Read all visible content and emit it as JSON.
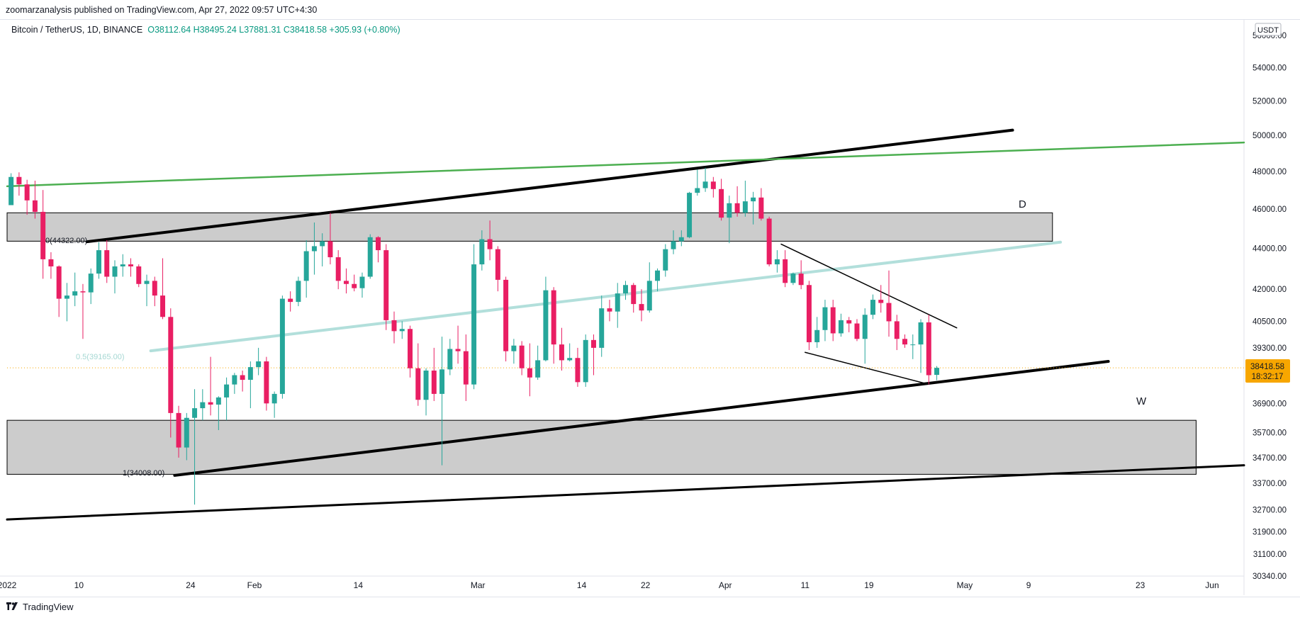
{
  "header": {
    "publish_line": "zoomarzanalysis published on TradingView.com, Apr 27, 2022 09:57 UTC+4:30"
  },
  "legend": {
    "symbol": "Bitcoin / TetherUS, 1D, BINANCE",
    "open": "O38112.64",
    "high": "H38495.24",
    "low": "L37881.31",
    "close": "C38418.58",
    "change": "+305.93 (+0.80%)"
  },
  "footer": {
    "brand": "TradingView"
  },
  "price_badge": {
    "price": "38418.58",
    "countdown": "18:32:17"
  },
  "currency": "USDT",
  "colors": {
    "up": "#26a69a",
    "down": "#e91e63",
    "zone_fill": "#cccccc",
    "green_line": "#4caf50",
    "teal_line": "#b2dfdb",
    "price_line": "#f7a600",
    "badge": "#f7a600"
  },
  "annotations": {
    "fib_0": "0(44322.00)",
    "fib_05": "0.5(39165.00)",
    "fib_1": "1(34008.00)",
    "zone_label_D": "D",
    "zone_label_W": "W"
  },
  "chart_data": {
    "type": "candlestick",
    "title": "",
    "xlabel": "",
    "ylabel": "",
    "y_scale": "log",
    "ylim": [
      30340,
      57000
    ],
    "xlim": [
      "2022-01-01",
      "2022-06-05"
    ],
    "y_ticks": [
      "56000.00",
      "54000.00",
      "52000.00",
      "50000.00",
      "48000.00",
      "46000.00",
      "44000.00",
      "42000.00",
      "40500.00",
      "39300.00",
      "36900.00",
      "35700.00",
      "34700.00",
      "33700.00",
      "32700.00",
      "31900.00",
      "31100.00",
      "30340.00"
    ],
    "x_ticks": [
      {
        "date": "2022-01-01",
        "label": "2022"
      },
      {
        "date": "2022-01-10",
        "label": "10"
      },
      {
        "date": "2022-01-24",
        "label": "24"
      },
      {
        "date": "2022-02-01",
        "label": "Feb"
      },
      {
        "date": "2022-02-14",
        "label": "14"
      },
      {
        "date": "2022-03-01",
        "label": "Mar"
      },
      {
        "date": "2022-03-14",
        "label": "14"
      },
      {
        "date": "2022-03-22",
        "label": "22"
      },
      {
        "date": "2022-04-01",
        "label": "Apr"
      },
      {
        "date": "2022-04-11",
        "label": "11"
      },
      {
        "date": "2022-04-19",
        "label": "19"
      },
      {
        "date": "2022-05-01",
        "label": "May"
      },
      {
        "date": "2022-05-09",
        "label": "9"
      },
      {
        "date": "2022-05-23",
        "label": "23"
      },
      {
        "date": "2022-06-01",
        "label": "Jun"
      }
    ],
    "candles": [
      {
        "d": "2022-01-01",
        "o": 46200,
        "h": 47900,
        "l": 46200,
        "c": 47700
      },
      {
        "d": "2022-01-02",
        "o": 47700,
        "h": 47950,
        "l": 46700,
        "c": 47300
      },
      {
        "d": "2022-01-03",
        "o": 47300,
        "h": 47550,
        "l": 45700,
        "c": 46450
      },
      {
        "d": "2022-01-04",
        "o": 46450,
        "h": 47500,
        "l": 45500,
        "c": 45850
      },
      {
        "d": "2022-01-05",
        "o": 45850,
        "h": 47000,
        "l": 42500,
        "c": 43450
      },
      {
        "d": "2022-01-06",
        "o": 43450,
        "h": 43800,
        "l": 42500,
        "c": 43100
      },
      {
        "d": "2022-01-07",
        "o": 43100,
        "h": 43150,
        "l": 40700,
        "c": 41550
      },
      {
        "d": "2022-01-08",
        "o": 41550,
        "h": 42300,
        "l": 40500,
        "c": 41700
      },
      {
        "d": "2022-01-09",
        "o": 41700,
        "h": 42800,
        "l": 41200,
        "c": 41900
      },
      {
        "d": "2022-01-10",
        "o": 41900,
        "h": 42250,
        "l": 39700,
        "c": 41850
      },
      {
        "d": "2022-01-11",
        "o": 41850,
        "h": 43000,
        "l": 41300,
        "c": 42750
      },
      {
        "d": "2022-01-12",
        "o": 42750,
        "h": 44300,
        "l": 42500,
        "c": 43900
      },
      {
        "d": "2022-01-13",
        "o": 43900,
        "h": 44400,
        "l": 42300,
        "c": 42600
      },
      {
        "d": "2022-01-14",
        "o": 42600,
        "h": 43400,
        "l": 41800,
        "c": 43100
      },
      {
        "d": "2022-01-15",
        "o": 43100,
        "h": 43700,
        "l": 42600,
        "c": 43200
      },
      {
        "d": "2022-01-16",
        "o": 43200,
        "h": 43500,
        "l": 42600,
        "c": 43100
      },
      {
        "d": "2022-01-17",
        "o": 43100,
        "h": 43200,
        "l": 42100,
        "c": 42250
      },
      {
        "d": "2022-01-18",
        "o": 42250,
        "h": 42700,
        "l": 41200,
        "c": 42400
      },
      {
        "d": "2022-01-19",
        "o": 42400,
        "h": 42600,
        "l": 41200,
        "c": 41700
      },
      {
        "d": "2022-01-20",
        "o": 41700,
        "h": 43500,
        "l": 40600,
        "c": 40700
      },
      {
        "d": "2022-01-21",
        "o": 40700,
        "h": 41100,
        "l": 35500,
        "c": 36500
      },
      {
        "d": "2022-01-22",
        "o": 36500,
        "h": 36800,
        "l": 34700,
        "c": 35100
      },
      {
        "d": "2022-01-23",
        "o": 35100,
        "h": 36500,
        "l": 34600,
        "c": 36300
      },
      {
        "d": "2022-01-24",
        "o": 36300,
        "h": 37500,
        "l": 32900,
        "c": 36700
      },
      {
        "d": "2022-01-25",
        "o": 36700,
        "h": 37500,
        "l": 36200,
        "c": 36950
      },
      {
        "d": "2022-01-26",
        "o": 36950,
        "h": 38900,
        "l": 36400,
        "c": 36850
      },
      {
        "d": "2022-01-27",
        "o": 36850,
        "h": 37200,
        "l": 35800,
        "c": 37150
      },
      {
        "d": "2022-01-28",
        "o": 37150,
        "h": 38000,
        "l": 36200,
        "c": 37700
      },
      {
        "d": "2022-01-29",
        "o": 37700,
        "h": 38200,
        "l": 37300,
        "c": 38100
      },
      {
        "d": "2022-01-30",
        "o": 38100,
        "h": 38300,
        "l": 37400,
        "c": 37900
      },
      {
        "d": "2022-01-31",
        "o": 37900,
        "h": 38700,
        "l": 36700,
        "c": 38450
      },
      {
        "d": "2022-02-01",
        "o": 38450,
        "h": 39300,
        "l": 38100,
        "c": 38700
      },
      {
        "d": "2022-02-02",
        "o": 38700,
        "h": 38900,
        "l": 36600,
        "c": 36900
      },
      {
        "d": "2022-02-03",
        "o": 36900,
        "h": 37400,
        "l": 36300,
        "c": 37300
      },
      {
        "d": "2022-02-04",
        "o": 37300,
        "h": 41700,
        "l": 37100,
        "c": 41550
      },
      {
        "d": "2022-02-05",
        "o": 41550,
        "h": 41900,
        "l": 40950,
        "c": 41400
      },
      {
        "d": "2022-02-06",
        "o": 41400,
        "h": 42600,
        "l": 41200,
        "c": 42400
      },
      {
        "d": "2022-02-07",
        "o": 42400,
        "h": 44400,
        "l": 41600,
        "c": 43850
      },
      {
        "d": "2022-02-08",
        "o": 43850,
        "h": 45300,
        "l": 42700,
        "c": 44100
      },
      {
        "d": "2022-02-09",
        "o": 44100,
        "h": 44750,
        "l": 43100,
        "c": 44350
      },
      {
        "d": "2022-02-10",
        "o": 44350,
        "h": 45800,
        "l": 43200,
        "c": 43550
      },
      {
        "d": "2022-02-11",
        "o": 43550,
        "h": 43900,
        "l": 42000,
        "c": 42400
      },
      {
        "d": "2022-02-12",
        "o": 42400,
        "h": 43000,
        "l": 41800,
        "c": 42250
      },
      {
        "d": "2022-02-13",
        "o": 42250,
        "h": 42700,
        "l": 41900,
        "c": 42050
      },
      {
        "d": "2022-02-14",
        "o": 42050,
        "h": 42800,
        "l": 41600,
        "c": 42600
      },
      {
        "d": "2022-02-15",
        "o": 42600,
        "h": 44700,
        "l": 42500,
        "c": 44550
      },
      {
        "d": "2022-02-16",
        "o": 44550,
        "h": 44600,
        "l": 43300,
        "c": 43900
      },
      {
        "d": "2022-02-17",
        "o": 43900,
        "h": 44200,
        "l": 40100,
        "c": 40550
      },
      {
        "d": "2022-02-18",
        "o": 40550,
        "h": 40950,
        "l": 39500,
        "c": 40050
      },
      {
        "d": "2022-02-19",
        "o": 40050,
        "h": 40500,
        "l": 39700,
        "c": 40150
      },
      {
        "d": "2022-02-20",
        "o": 40150,
        "h": 40300,
        "l": 38000,
        "c": 38400
      },
      {
        "d": "2022-02-21",
        "o": 38400,
        "h": 39500,
        "l": 36800,
        "c": 37050
      },
      {
        "d": "2022-02-22",
        "o": 37050,
        "h": 38400,
        "l": 36400,
        "c": 38300
      },
      {
        "d": "2022-02-23",
        "o": 38300,
        "h": 39300,
        "l": 37000,
        "c": 37300
      },
      {
        "d": "2022-02-24",
        "o": 37300,
        "h": 39800,
        "l": 34400,
        "c": 38350
      },
      {
        "d": "2022-02-25",
        "o": 38350,
        "h": 39700,
        "l": 38100,
        "c": 39250
      },
      {
        "d": "2022-02-26",
        "o": 39250,
        "h": 40300,
        "l": 38600,
        "c": 39150
      },
      {
        "d": "2022-02-27",
        "o": 39150,
        "h": 39900,
        "l": 37000,
        "c": 37700
      },
      {
        "d": "2022-02-28",
        "o": 37700,
        "h": 44200,
        "l": 37500,
        "c": 43200
      },
      {
        "d": "2022-03-01",
        "o": 43200,
        "h": 44900,
        "l": 42900,
        "c": 44450
      },
      {
        "d": "2022-03-02",
        "o": 44450,
        "h": 45400,
        "l": 43400,
        "c": 43950
      },
      {
        "d": "2022-03-03",
        "o": 43950,
        "h": 44100,
        "l": 41900,
        "c": 42450
      },
      {
        "d": "2022-03-04",
        "o": 42450,
        "h": 42600,
        "l": 38700,
        "c": 39150
      },
      {
        "d": "2022-03-05",
        "o": 39150,
        "h": 39700,
        "l": 38600,
        "c": 39400
      },
      {
        "d": "2022-03-06",
        "o": 39400,
        "h": 39600,
        "l": 38100,
        "c": 38400
      },
      {
        "d": "2022-03-07",
        "o": 38400,
        "h": 39500,
        "l": 37200,
        "c": 38000
      },
      {
        "d": "2022-03-08",
        "o": 38000,
        "h": 39400,
        "l": 37900,
        "c": 38750
      },
      {
        "d": "2022-03-09",
        "o": 38750,
        "h": 42600,
        "l": 38700,
        "c": 41950
      },
      {
        "d": "2022-03-10",
        "o": 41950,
        "h": 42100,
        "l": 38600,
        "c": 39450
      },
      {
        "d": "2022-03-11",
        "o": 39450,
        "h": 40200,
        "l": 38300,
        "c": 38750
      },
      {
        "d": "2022-03-12",
        "o": 38750,
        "h": 39500,
        "l": 38700,
        "c": 38850
      },
      {
        "d": "2022-03-13",
        "o": 38850,
        "h": 39300,
        "l": 37600,
        "c": 37800
      },
      {
        "d": "2022-03-14",
        "o": 37800,
        "h": 39900,
        "l": 37600,
        "c": 39650
      },
      {
        "d": "2022-03-15",
        "o": 39650,
        "h": 39900,
        "l": 38100,
        "c": 39300
      },
      {
        "d": "2022-03-16",
        "o": 39300,
        "h": 41700,
        "l": 38900,
        "c": 41100
      },
      {
        "d": "2022-03-17",
        "o": 41100,
        "h": 41500,
        "l": 40500,
        "c": 40950
      },
      {
        "d": "2022-03-18",
        "o": 40950,
        "h": 42300,
        "l": 40200,
        "c": 41800
      },
      {
        "d": "2022-03-19",
        "o": 41800,
        "h": 42400,
        "l": 41500,
        "c": 42200
      },
      {
        "d": "2022-03-20",
        "o": 42200,
        "h": 42300,
        "l": 40900,
        "c": 41300
      },
      {
        "d": "2022-03-21",
        "o": 41300,
        "h": 42000,
        "l": 40500,
        "c": 41000
      },
      {
        "d": "2022-03-22",
        "o": 41000,
        "h": 43300,
        "l": 40900,
        "c": 42400
      },
      {
        "d": "2022-03-23",
        "o": 42400,
        "h": 43000,
        "l": 41900,
        "c": 42900
      },
      {
        "d": "2022-03-24",
        "o": 42900,
        "h": 44200,
        "l": 42600,
        "c": 43950
      },
      {
        "d": "2022-03-25",
        "o": 43950,
        "h": 44900,
        "l": 43700,
        "c": 44350
      },
      {
        "d": "2022-03-26",
        "o": 44350,
        "h": 44900,
        "l": 44100,
        "c": 44550
      },
      {
        "d": "2022-03-27",
        "o": 44550,
        "h": 46900,
        "l": 44500,
        "c": 46850
      },
      {
        "d": "2022-03-28",
        "o": 46850,
        "h": 48100,
        "l": 46700,
        "c": 47100
      },
      {
        "d": "2022-03-29",
        "o": 47100,
        "h": 48200,
        "l": 46900,
        "c": 47450
      },
      {
        "d": "2022-03-30",
        "o": 47450,
        "h": 47700,
        "l": 46600,
        "c": 47050
      },
      {
        "d": "2022-03-31",
        "o": 47050,
        "h": 47600,
        "l": 45400,
        "c": 45550
      },
      {
        "d": "2022-04-01",
        "o": 45550,
        "h": 46700,
        "l": 44250,
        "c": 46300
      },
      {
        "d": "2022-04-02",
        "o": 46300,
        "h": 47200,
        "l": 45600,
        "c": 45800
      },
      {
        "d": "2022-04-03",
        "o": 45800,
        "h": 47500,
        "l": 45600,
        "c": 46400
      },
      {
        "d": "2022-04-04",
        "o": 46400,
        "h": 46900,
        "l": 45200,
        "c": 46600
      },
      {
        "d": "2022-04-05",
        "o": 46600,
        "h": 47100,
        "l": 45400,
        "c": 45500
      },
      {
        "d": "2022-04-06",
        "o": 45500,
        "h": 45600,
        "l": 43100,
        "c": 43200
      },
      {
        "d": "2022-04-07",
        "o": 43200,
        "h": 43900,
        "l": 42800,
        "c": 43450
      },
      {
        "d": "2022-04-08",
        "o": 43450,
        "h": 43900,
        "l": 42100,
        "c": 42300
      },
      {
        "d": "2022-04-09",
        "o": 42300,
        "h": 42800,
        "l": 42200,
        "c": 42750
      },
      {
        "d": "2022-04-10",
        "o": 42750,
        "h": 43400,
        "l": 42000,
        "c": 42200
      },
      {
        "d": "2022-04-11",
        "o": 42200,
        "h": 42400,
        "l": 39200,
        "c": 39550
      },
      {
        "d": "2022-04-12",
        "o": 39550,
        "h": 40700,
        "l": 39300,
        "c": 40100
      },
      {
        "d": "2022-04-13",
        "o": 40100,
        "h": 41500,
        "l": 39600,
        "c": 41150
      },
      {
        "d": "2022-04-14",
        "o": 41150,
        "h": 41500,
        "l": 39600,
        "c": 39950
      },
      {
        "d": "2022-04-15",
        "o": 39950,
        "h": 40850,
        "l": 39800,
        "c": 40550
      },
      {
        "d": "2022-04-16",
        "o": 40550,
        "h": 40700,
        "l": 40000,
        "c": 40400
      },
      {
        "d": "2022-04-17",
        "o": 40400,
        "h": 40600,
        "l": 39600,
        "c": 39700
      },
      {
        "d": "2022-04-18",
        "o": 39700,
        "h": 41100,
        "l": 38600,
        "c": 40800
      },
      {
        "d": "2022-04-19",
        "o": 40800,
        "h": 41750,
        "l": 40600,
        "c": 41500
      },
      {
        "d": "2022-04-20",
        "o": 41500,
        "h": 42200,
        "l": 40900,
        "c": 41350
      },
      {
        "d": "2022-04-21",
        "o": 41350,
        "h": 42900,
        "l": 39800,
        "c": 40500
      },
      {
        "d": "2022-04-22",
        "o": 40500,
        "h": 40800,
        "l": 39200,
        "c": 39700
      },
      {
        "d": "2022-04-23",
        "o": 39700,
        "h": 39900,
        "l": 39300,
        "c": 39450
      },
      {
        "d": "2022-04-24",
        "o": 39450,
        "h": 39900,
        "l": 38800,
        "c": 39450
      },
      {
        "d": "2022-04-25",
        "o": 39450,
        "h": 40600,
        "l": 38200,
        "c": 40450
      },
      {
        "d": "2022-04-26",
        "o": 40450,
        "h": 40800,
        "l": 37700,
        "c": 38100
      },
      {
        "d": "2022-04-27",
        "o": 38112.64,
        "h": 38495.24,
        "l": 37881.31,
        "c": 38418.58
      }
    ],
    "zones": [
      {
        "label": "D",
        "from": "2022-01-01",
        "to": "2022-05-12",
        "top": 45800,
        "bottom": 44350
      },
      {
        "label": "W",
        "from": "2022-01-01",
        "to": "2022-05-30",
        "top": 36200,
        "bottom": 34050
      }
    ],
    "trendlines": [
      {
        "name": "channel-top",
        "color": "#000000",
        "width": 4,
        "p1": {
          "d": "2022-01-11",
          "v": 44322
        },
        "p2": {
          "d": "2022-05-07",
          "v": 50300
        }
      },
      {
        "name": "channel-bottom",
        "color": "#000000",
        "width": 4,
        "p1": {
          "d": "2022-01-22",
          "v": 34008
        },
        "p2": {
          "d": "2022-05-19",
          "v": 38700
        }
      },
      {
        "name": "outer-support",
        "color": "#000000",
        "width": 3,
        "p1": {
          "d": "2022-01-01",
          "v": 32350
        },
        "p2": {
          "d": "2022-06-05",
          "v": 34400
        }
      },
      {
        "name": "resistance-green",
        "color": "#4caf50",
        "width": 2.5,
        "p1": {
          "d": "2022-01-01",
          "v": 47200
        },
        "p2": {
          "d": "2022-06-05",
          "v": 49600
        }
      },
      {
        "name": "mid-channel",
        "color": "#b2dfdb",
        "width": 4,
        "p1": {
          "d": "2022-01-19",
          "v": 39165
        },
        "p2": {
          "d": "2022-05-13",
          "v": 44300
        }
      },
      {
        "name": "wedge-top",
        "color": "#000000",
        "width": 1.5,
        "p1": {
          "d": "2022-04-08",
          "v": 44200
        },
        "p2": {
          "d": "2022-04-30",
          "v": 40200
        }
      },
      {
        "name": "wedge-bottom",
        "color": "#000000",
        "width": 1.5,
        "p1": {
          "d": "2022-04-11",
          "v": 39100
        },
        "p2": {
          "d": "2022-04-26",
          "v": 37750
        }
      }
    ],
    "current_price": 38418.58
  }
}
